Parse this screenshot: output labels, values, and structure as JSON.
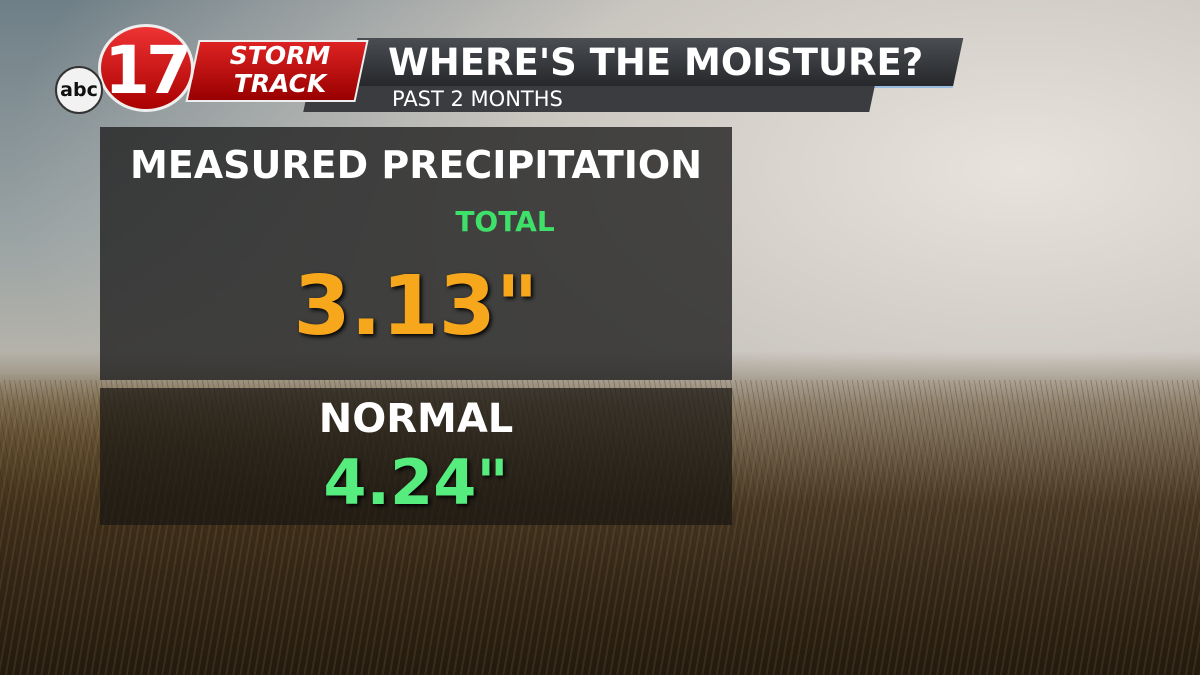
{
  "logo": {
    "network": "abc",
    "channel": "17",
    "brand_top": "STORM",
    "brand_bottom": "TRACK"
  },
  "header": {
    "title": "WHERE'S THE MOISTURE?",
    "subtitle": "PAST 2 MONTHS"
  },
  "panel": {
    "heading": "MEASURED PRECIPITATION",
    "total": {
      "label": "TOTAL",
      "value": "3.13\""
    },
    "normal": {
      "label": "NORMAL",
      "value": "4.24\""
    }
  }
}
